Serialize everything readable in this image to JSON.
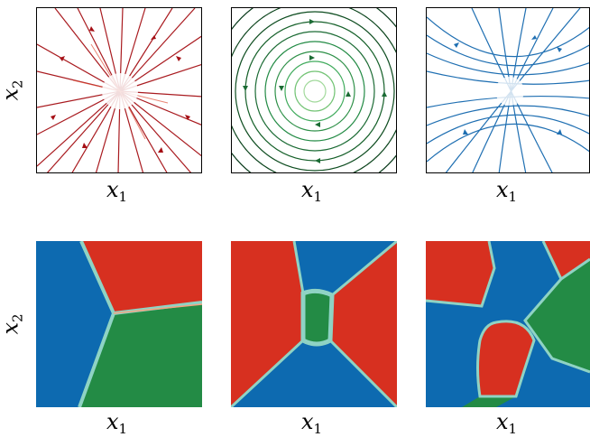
{
  "axes": {
    "x_label_base": "x",
    "x_label_sub": "1",
    "y_label_base": "x",
    "y_label_sub": "2"
  },
  "colors": {
    "row1_left": "#a50f15",
    "row1_middle": "#1b6b34",
    "row1_right": "#1f6fb2",
    "region_red": "#d73020",
    "region_blue": "#0d6ab0",
    "region_green": "#238b45",
    "boundary": "#8fd3c4"
  },
  "panels": {
    "row1": [
      {
        "field": "source",
        "color_key": "row1_left"
      },
      {
        "field": "rotation",
        "color_key": "row1_middle"
      },
      {
        "field": "saddle",
        "color_key": "row1_right"
      }
    ],
    "row2": [
      {
        "regions": [
          "blue",
          "red",
          "green"
        ]
      },
      {
        "regions": [
          "red",
          "blue",
          "green"
        ]
      },
      {
        "regions": [
          "red",
          "blue",
          "green"
        ]
      }
    ]
  }
}
